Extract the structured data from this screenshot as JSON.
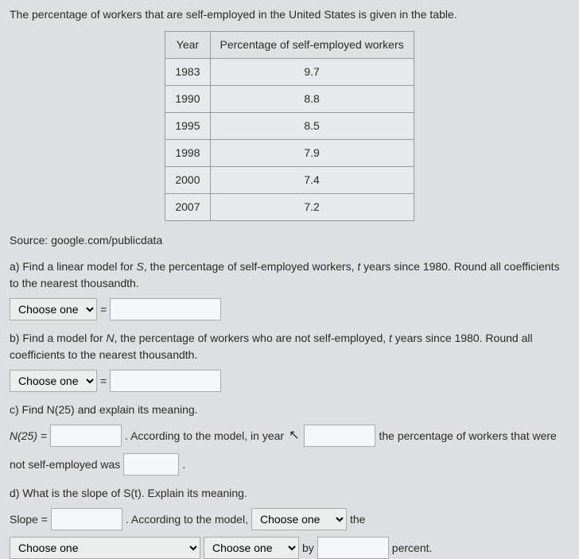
{
  "intro": "The percentage of workers that are self-employed in the United States is given in the table.",
  "table": {
    "headers": [
      "Year",
      "Percentage of self-employed workers"
    ],
    "rows": [
      [
        "1983",
        "9.7"
      ],
      [
        "1990",
        "8.8"
      ],
      [
        "1995",
        "8.5"
      ],
      [
        "1998",
        "7.9"
      ],
      [
        "2000",
        "7.4"
      ],
      [
        "2007",
        "7.2"
      ]
    ]
  },
  "source": "Source: google.com/publicdata",
  "parts": {
    "a": {
      "prompt_pre": "a) Find a linear model for ",
      "var": "S",
      "prompt_post": ", the percentage of self-employed workers, ",
      "tvar": "t",
      "prompt_tail": " years since 1980. Round all coefficients to the nearest thousandth.",
      "choose": "Choose one",
      "eq": "="
    },
    "b": {
      "prompt_pre": "b) Find a model for ",
      "var": "N",
      "prompt_post": ", the percentage of workers who are not self-employed, ",
      "tvar": "t",
      "prompt_tail": " years since 1980. Round all coefficients to the nearest thousandth.",
      "choose": "Choose one",
      "eq": "="
    },
    "c": {
      "prompt": "c) Find N(25) and explain its meaning.",
      "n25_label": "N(25) =",
      "text1": ". According to the model, in year",
      "text2": "the percentage of workers that were",
      "text3": "not self-employed was",
      "period": "."
    },
    "d": {
      "prompt": "d) What is the slope of S(t). Explain its meaning.",
      "slope_label": "Slope =",
      "text1": ". According to the model,",
      "choose1": "Choose one",
      "the": "the",
      "choose2": "Choose one",
      "choose3": "Choose one",
      "by": "by",
      "percent": "percent."
    }
  }
}
